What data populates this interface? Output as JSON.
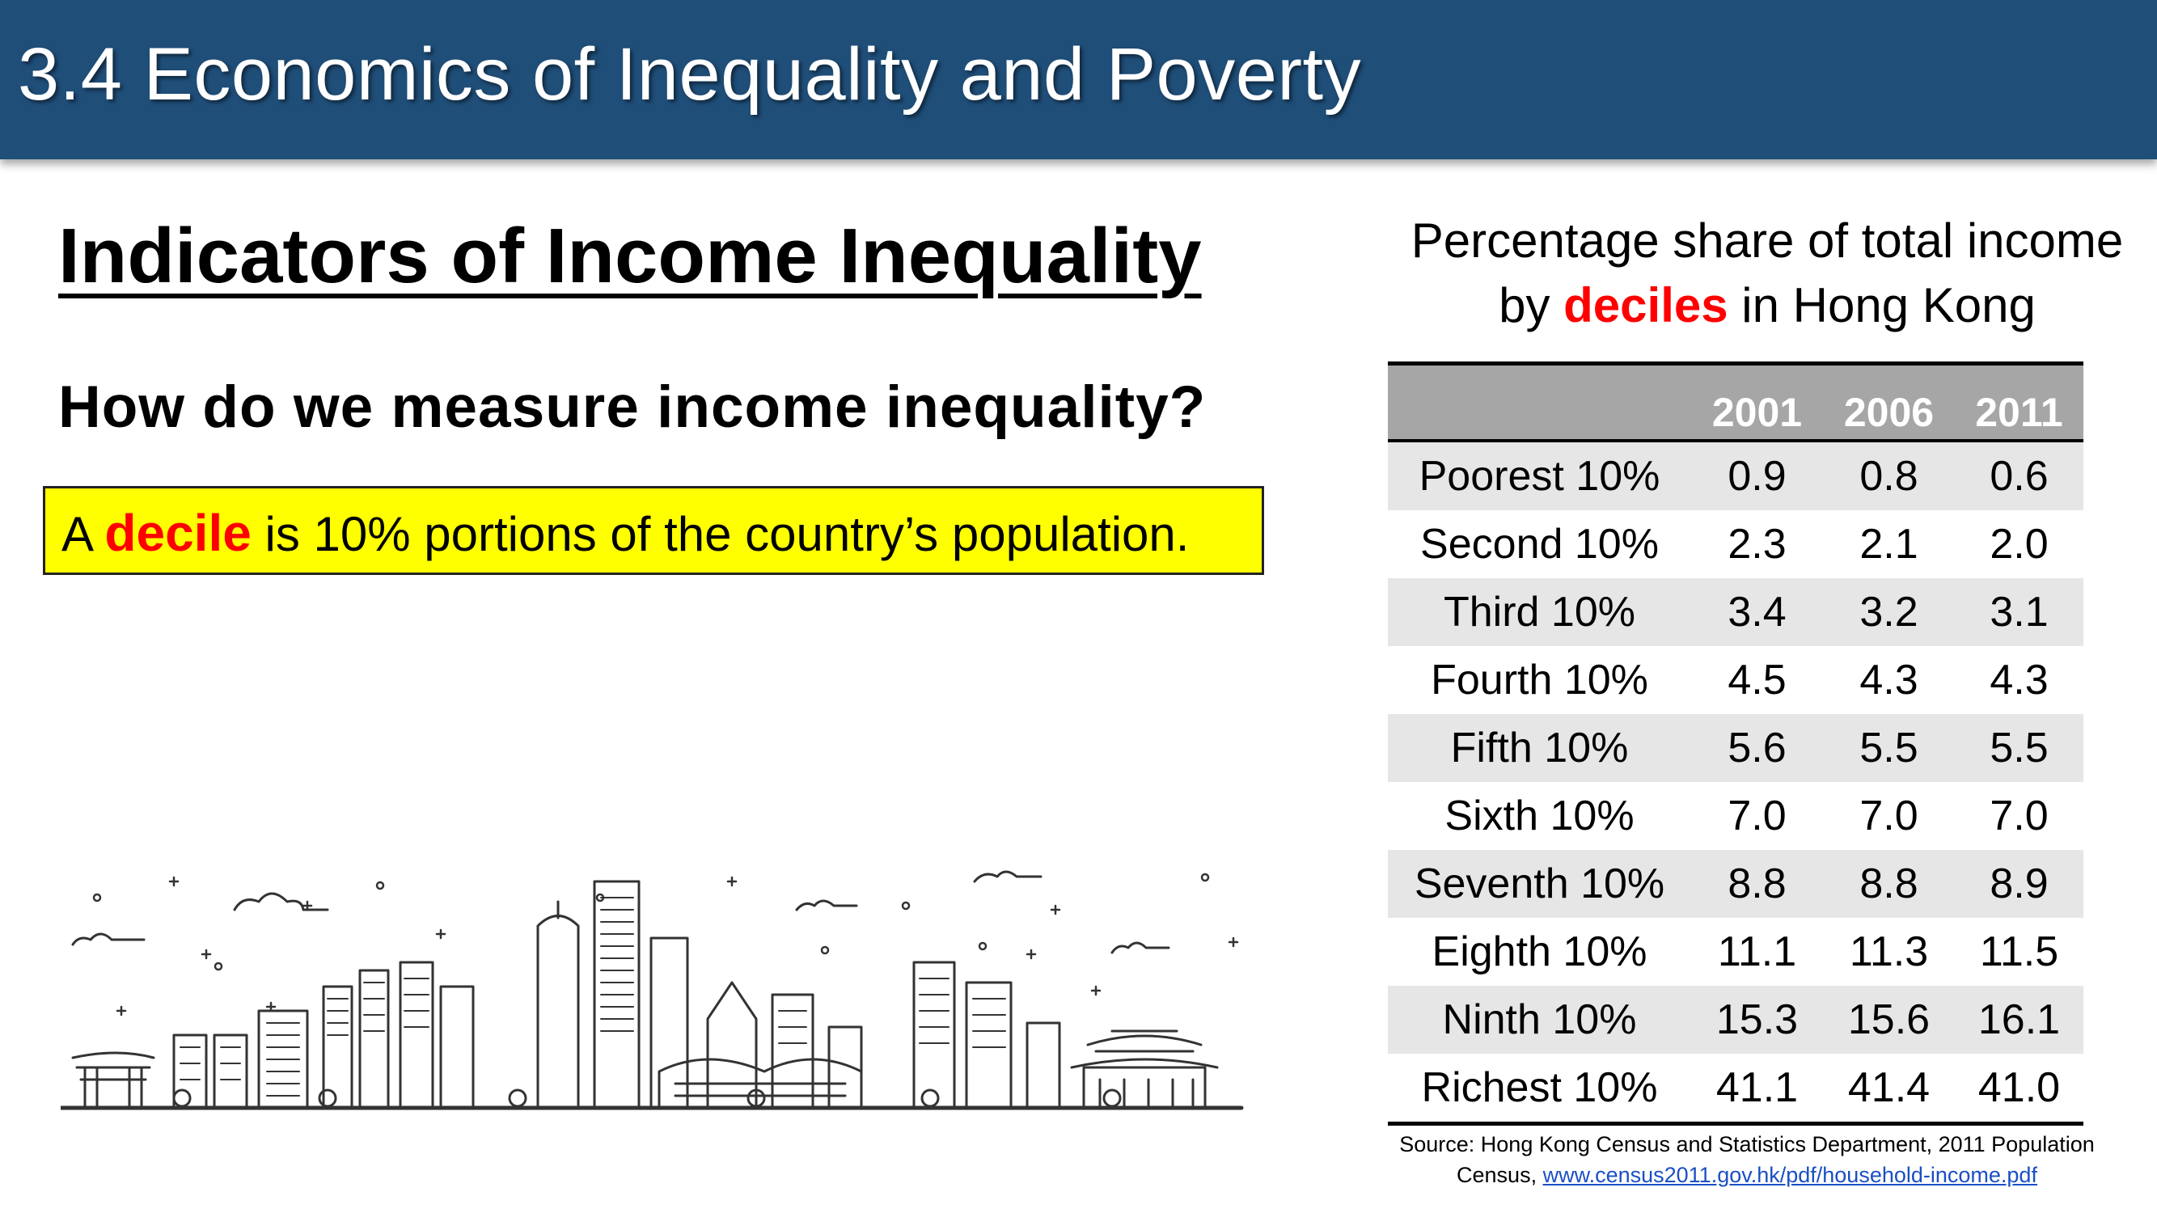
{
  "slide": {
    "title": "3.4 Economics of Inequality and Poverty",
    "heading": "Indicators of Income Inequality",
    "question": "How do we measure income inequality?",
    "definition": {
      "prefix": "A ",
      "term": "decile",
      "suffix": " is 10% portions of the country’s population.",
      "box_color": "#ffff00",
      "term_color": "#ff0000"
    },
    "illustration": "city-skyline-icon"
  },
  "table": {
    "caption_line1": "Percentage share of total income",
    "caption_by": "by ",
    "caption_highlight": "deciles",
    "caption_after": " in Hong Kong",
    "columns": [
      "",
      "2001",
      "2006",
      "2011"
    ],
    "rows": [
      {
        "label": "Poorest 10%",
        "values": [
          "0.9",
          "0.8",
          "0.6"
        ]
      },
      {
        "label": "Second 10%",
        "values": [
          "2.3",
          "2.1",
          "2.0"
        ]
      },
      {
        "label": "Third 10%",
        "values": [
          "3.4",
          "3.2",
          "3.1"
        ]
      },
      {
        "label": "Fourth 10%",
        "values": [
          "4.5",
          "4.3",
          "4.3"
        ]
      },
      {
        "label": "Fifth 10%",
        "values": [
          "5.6",
          "5.5",
          "5.5"
        ]
      },
      {
        "label": "Sixth 10%",
        "values": [
          "7.0",
          "7.0",
          "7.0"
        ]
      },
      {
        "label": "Seventh 10%",
        "values": [
          "8.8",
          "8.8",
          "8.9"
        ]
      },
      {
        "label": "Eighth 10%",
        "values": [
          "11.1",
          "11.3",
          "11.5"
        ]
      },
      {
        "label": "Ninth 10%",
        "values": [
          "15.3",
          "15.6",
          "16.1"
        ]
      },
      {
        "label": "Richest 10%",
        "values": [
          "41.1",
          "41.4",
          "41.0"
        ]
      }
    ]
  },
  "source": {
    "line1": "Source: Hong Kong Census and Statistics Department,  2011 Population",
    "line2_prefix": "Census, ",
    "link_text": "www.census2011.gov.hk/pdf/household-income.pdf"
  },
  "colors": {
    "title_bar": "#1f4e79",
    "header_row": "#a6a6a6",
    "shaded_row": "#e6e6e6",
    "highlight": "#ff0000"
  }
}
